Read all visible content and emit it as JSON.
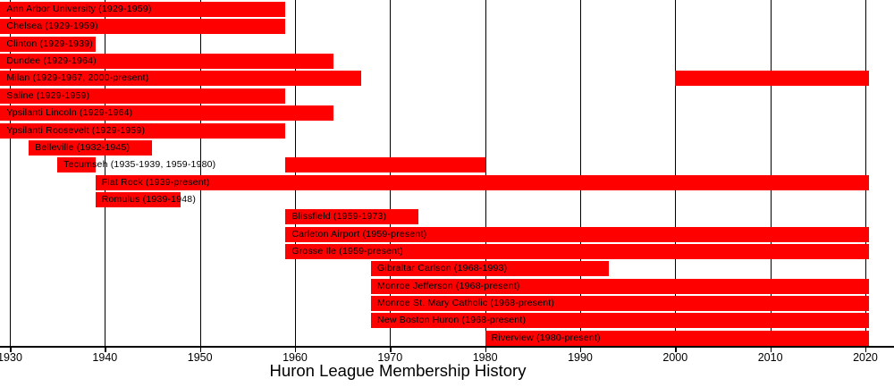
{
  "title": "Huron League Membership History",
  "colors": {
    "bar": "#ff0000",
    "text": "#000000",
    "gridline": "#000000",
    "background": "#ffffff"
  },
  "chart_data": {
    "type": "bar",
    "subtype": "gantt-timeline",
    "title": "Huron League Membership History",
    "xlabel": "",
    "ylabel": "",
    "xlim": [
      1929,
      2020.4
    ],
    "present_year": 2020.4,
    "grid": "vertical-decade-lines",
    "x_ticks": [
      1930,
      1940,
      1950,
      1960,
      1970,
      1980,
      1990,
      2000,
      2010,
      2020
    ],
    "x_tick_labels": [
      "1930",
      "1940",
      "1950",
      "1960",
      "1970",
      "1980",
      "1990",
      "2000",
      "2010",
      "2020"
    ],
    "series": [
      {
        "name": "Ann Arbor University",
        "label": "Ann Arbor University (1929-1959)",
        "segments": [
          [
            1929,
            1959
          ]
        ]
      },
      {
        "name": "Chelsea",
        "label": "Chelsea (1929-1959)",
        "segments": [
          [
            1929,
            1959
          ]
        ]
      },
      {
        "name": "Clinton",
        "label": "Clinton (1929-1939)",
        "segments": [
          [
            1929,
            1939
          ]
        ]
      },
      {
        "name": "Dundee",
        "label": "Dundee (1929-1964)",
        "segments": [
          [
            1929,
            1964
          ]
        ]
      },
      {
        "name": "Milan",
        "label": "Milan (1929-1967, 2000-present)",
        "segments": [
          [
            1929,
            1967
          ],
          [
            2000,
            "present"
          ]
        ]
      },
      {
        "name": "Saline",
        "label": "Saline (1929-1959)",
        "segments": [
          [
            1929,
            1959
          ]
        ]
      },
      {
        "name": "Ypsilanti Lincoln",
        "label": "Ypsilanti Lincoln (1929-1964)",
        "segments": [
          [
            1929,
            1964
          ]
        ]
      },
      {
        "name": "Ypsilanti Roosevelt",
        "label": "Ypsilanti Roosevelt (1929-1959)",
        "segments": [
          [
            1929,
            1959
          ]
        ]
      },
      {
        "name": "Belleville",
        "label": "Belleville (1932-1945)",
        "segments": [
          [
            1932,
            1945
          ]
        ]
      },
      {
        "name": "Tecumseh",
        "label": "Tecumseh (1935-1939, 1959-1980)",
        "segments": [
          [
            1935,
            1939
          ],
          [
            1959,
            1980
          ]
        ]
      },
      {
        "name": "Flat Rock",
        "label": "Flat Rock (1939-present)",
        "segments": [
          [
            1939,
            "present"
          ]
        ]
      },
      {
        "name": "Romulus",
        "label": "Romulus (1939-1948)",
        "segments": [
          [
            1939,
            1948
          ]
        ]
      },
      {
        "name": "Blissfield",
        "label": "Blissfield (1959-1973)",
        "segments": [
          [
            1959,
            1973
          ]
        ]
      },
      {
        "name": "Carleton Airport",
        "label": "Carleton Airport (1959-present)",
        "segments": [
          [
            1959,
            "present"
          ]
        ]
      },
      {
        "name": "Grosse Ile",
        "label": "Grosse Ile (1959-present)",
        "segments": [
          [
            1959,
            "present"
          ]
        ]
      },
      {
        "name": "Gibraltar Carlson",
        "label": "Gibraltar Carlson (1968-1993)",
        "segments": [
          [
            1968,
            1993
          ]
        ]
      },
      {
        "name": "Monroe Jefferson",
        "label": "Monroe Jefferson (1968-present)",
        "segments": [
          [
            1968,
            "present"
          ]
        ]
      },
      {
        "name": "Monroe St. Mary Catholic",
        "label": "Monroe St. Mary Catholic (1968-present)",
        "segments": [
          [
            1968,
            "present"
          ]
        ]
      },
      {
        "name": "New Boston Huron",
        "label": "New Boston Huron (1968-present)",
        "segments": [
          [
            1968,
            "present"
          ]
        ]
      },
      {
        "name": "Riverview",
        "label": "Riverview (1980-present)",
        "segments": [
          [
            1980,
            "present"
          ]
        ]
      }
    ]
  }
}
